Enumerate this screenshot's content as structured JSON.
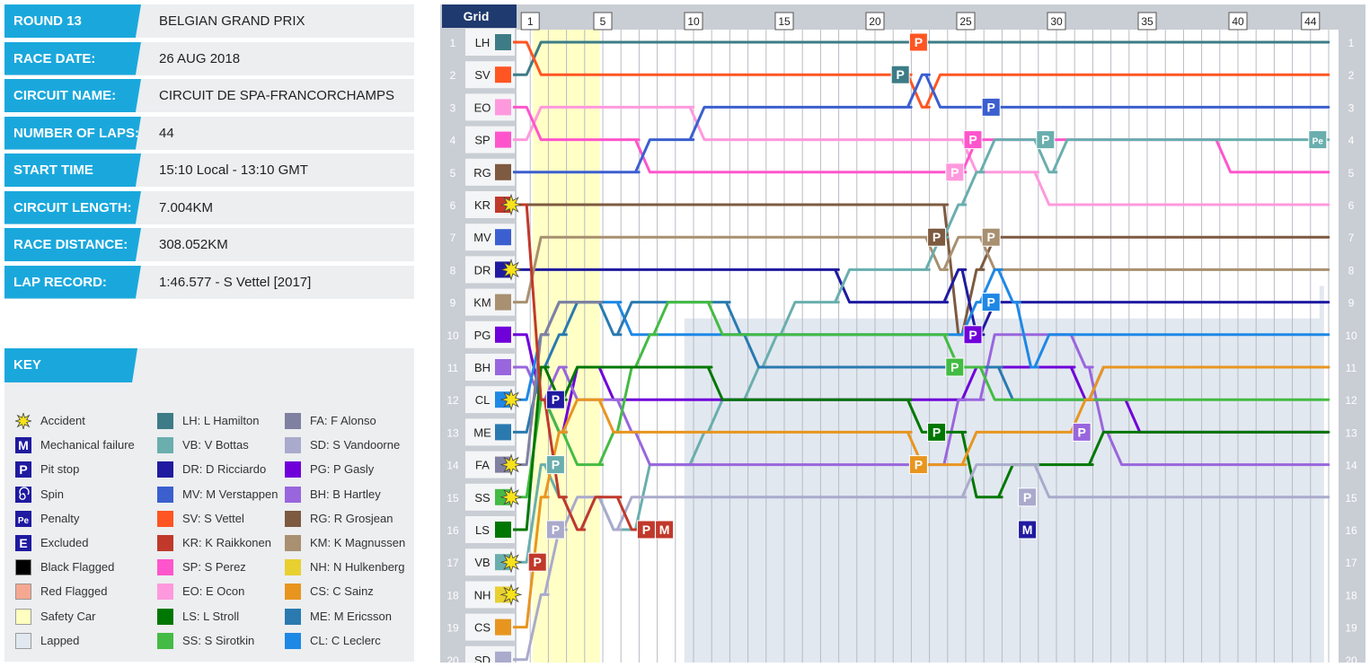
{
  "info": [
    {
      "label": "ROUND 13",
      "value": "BELGIAN GRAND PRIX"
    },
    {
      "label": "RACE DATE:",
      "value": "26 AUG 2018"
    },
    {
      "label": "CIRCUIT NAME:",
      "value": "CIRCUIT DE SPA-FRANCORCHAMPS"
    },
    {
      "label": "NUMBER OF LAPS:",
      "value": "44"
    },
    {
      "label": "START TIME",
      "value": "15:10 Local - 13:10 GMT"
    },
    {
      "label": "CIRCUIT LENGTH:",
      "value": "7.004KM"
    },
    {
      "label": "RACE DISTANCE:",
      "value": "308.052KM"
    },
    {
      "label": "LAP RECORD:",
      "value": "1:46.577 - S Vettel [2017]"
    }
  ],
  "key": {
    "title": "KEY",
    "symbols": [
      {
        "icon": "accident",
        "label": "Accident"
      },
      {
        "icon": "mechanical",
        "label": "Mechanical failure",
        "letter": "M"
      },
      {
        "icon": "pit",
        "label": "Pit stop",
        "letter": "P"
      },
      {
        "icon": "spin",
        "label": "Spin"
      },
      {
        "icon": "penalty",
        "label": "Penalty",
        "letter": "Pe"
      },
      {
        "icon": "excluded",
        "label": "Excluded",
        "letter": "E"
      },
      {
        "icon": "black-flag",
        "label": "Black Flagged",
        "color": "#000000"
      },
      {
        "icon": "red-flag",
        "label": "Red Flagged",
        "color": "#f4a892"
      },
      {
        "icon": "safety-car",
        "label": "Safety Car",
        "color": "#ffffc0"
      },
      {
        "icon": "lapped",
        "label": "Lapped",
        "color": "#e2e8f0"
      }
    ],
    "drivers_col1": [
      "LH: L Hamilton",
      "VB: V Bottas",
      "DR: D Ricciardo",
      "MV: M Verstappen",
      "SV: S Vettel",
      "KR: K Raikkonen",
      "SP: S Perez",
      "EO: E Ocon",
      "LS: L Stroll",
      "SS: S Sirotkin"
    ],
    "drivers_col2": [
      "FA: F Alonso",
      "SD: S Vandoorne",
      "PG: P Gasly",
      "BH: B Hartley",
      "RG: R Grosjean",
      "KM: K Magnussen",
      "NH: N Hulkenberg",
      "CS: C Sainz",
      "ME: M Ericsson",
      "CL: C Leclerc"
    ]
  },
  "chart_data": {
    "type": "line",
    "title": "Grid",
    "x_label_ticks": [
      1,
      5,
      10,
      15,
      20,
      25,
      30,
      35,
      40,
      44
    ],
    "total_laps": 44,
    "positions": 20,
    "grid": [
      "LH",
      "SV",
      "EO",
      "SP",
      "RG",
      "KR",
      "MV",
      "DR",
      "KM",
      "PG",
      "BH",
      "CL",
      "ME",
      "FA",
      "SS",
      "LS",
      "VB",
      "NH",
      "CS",
      "SD"
    ],
    "colors": {
      "LH": "#3d7c86",
      "SV": "#ff5522",
      "EO": "#ff99dd",
      "SP": "#ff55cc",
      "RG": "#7d5a40",
      "KR": "#c0392b",
      "MV": "#3b5fcf",
      "DR": "#1f1aa0",
      "KM": "#a89070",
      "PG": "#6f00d9",
      "BH": "#9966dd",
      "CL": "#1e88e5",
      "ME": "#2a7ab0",
      "FA": "#8080a0",
      "SS": "#44bb44",
      "LS": "#007700",
      "VB": "#6aaeae",
      "NH": "#e8d030",
      "CS": "#e89520",
      "SD": "#aaaacc"
    },
    "safety_car_laps": [
      1,
      4
    ],
    "lapped_positions": [
      [
        9,
        10
      ],
      [
        13,
        10
      ],
      [
        20,
        10
      ],
      [
        29,
        10
      ],
      [
        37,
        10
      ],
      [
        44,
        9
      ]
    ],
    "series": [
      {
        "name": "LH",
        "values": [
          2,
          1,
          1,
          1,
          1,
          1,
          1,
          1,
          1,
          1,
          1,
          1,
          1,
          1,
          1,
          1,
          1,
          1,
          1,
          1,
          1,
          1,
          1,
          1,
          1,
          1,
          1,
          1,
          1,
          1,
          1,
          1,
          1,
          1,
          1,
          1,
          1,
          1,
          1,
          1,
          1,
          1,
          1,
          1,
          1
        ]
      },
      {
        "name": "SV",
        "values": [
          1,
          2,
          2,
          2,
          2,
          2,
          2,
          2,
          2,
          2,
          2,
          2,
          2,
          2,
          2,
          2,
          2,
          2,
          2,
          2,
          2,
          2,
          3,
          2,
          2,
          2,
          2,
          2,
          2,
          2,
          2,
          2,
          2,
          2,
          2,
          2,
          2,
          2,
          2,
          2,
          2,
          2,
          2,
          2,
          2
        ]
      },
      {
        "name": "EO",
        "values": [
          4,
          3,
          3,
          3,
          3,
          3,
          3,
          3,
          3,
          3,
          4,
          4,
          4,
          4,
          4,
          4,
          4,
          4,
          4,
          4,
          4,
          4,
          4,
          4,
          4,
          5,
          5,
          5,
          5,
          6,
          6,
          6,
          6,
          6,
          6,
          6,
          6,
          6,
          6,
          6,
          6,
          6,
          6,
          6,
          6
        ]
      },
      {
        "name": "SP",
        "values": [
          3,
          4,
          4,
          4,
          4,
          4,
          4,
          5,
          5,
          5,
          5,
          5,
          5,
          5,
          5,
          5,
          5,
          5,
          5,
          5,
          5,
          5,
          5,
          5,
          5,
          4,
          4,
          4,
          4,
          4,
          4,
          4,
          4,
          4,
          4,
          4,
          4,
          4,
          4,
          5,
          5,
          5,
          5,
          5,
          5
        ]
      },
      {
        "name": "RG",
        "values": [
          6,
          6,
          6,
          6,
          6,
          6,
          6,
          6,
          6,
          6,
          6,
          6,
          6,
          6,
          6,
          6,
          6,
          6,
          6,
          6,
          6,
          6,
          6,
          6,
          10,
          8,
          7,
          7,
          7,
          7,
          7,
          7,
          7,
          7,
          7,
          7,
          7,
          7,
          7,
          7,
          7,
          7,
          7,
          7,
          7
        ]
      },
      {
        "name": "MV",
        "values": [
          5,
          5,
          5,
          5,
          5,
          5,
          5,
          4,
          4,
          4,
          3,
          3,
          3,
          3,
          3,
          3,
          3,
          3,
          3,
          3,
          3,
          3,
          2,
          3,
          3,
          3,
          3,
          3,
          3,
          3,
          3,
          3,
          3,
          3,
          3,
          3,
          3,
          3,
          3,
          3,
          3,
          3,
          3,
          3,
          3
        ]
      },
      {
        "name": "DR",
        "values": [
          8,
          8,
          8,
          8,
          8,
          8,
          8,
          8,
          8,
          8,
          8,
          8,
          8,
          8,
          8,
          8,
          8,
          8,
          9,
          9,
          9,
          9,
          9,
          9,
          8,
          10,
          9,
          9,
          9,
          9,
          9,
          9,
          9,
          9,
          9,
          9,
          9,
          9,
          9,
          9,
          9,
          9,
          9,
          9,
          9
        ]
      },
      {
        "name": "KM",
        "values": [
          9,
          7,
          7,
          7,
          7,
          7,
          7,
          7,
          7,
          7,
          7,
          7,
          7,
          7,
          7,
          7,
          7,
          7,
          7,
          7,
          7,
          7,
          7,
          8,
          7,
          7,
          8,
          8,
          8,
          8,
          8,
          8,
          8,
          8,
          8,
          8,
          8,
          8,
          8,
          8,
          8,
          8,
          8,
          8,
          8
        ]
      },
      {
        "name": "VB",
        "values": [
          17,
          14,
          15,
          16,
          15,
          16,
          16,
          14,
          14,
          14,
          13,
          12,
          12,
          11,
          10,
          9,
          9,
          9,
          8,
          8,
          8,
          8,
          8,
          7,
          6,
          5,
          4,
          4,
          4,
          5,
          4,
          4,
          4,
          4,
          4,
          4,
          4,
          4,
          4,
          4,
          4,
          4,
          4,
          4,
          4
        ]
      },
      {
        "name": "PG",
        "values": [
          10,
          12,
          13,
          11,
          11,
          12,
          12,
          12,
          12,
          12,
          12,
          12,
          12,
          12,
          12,
          12,
          12,
          12,
          12,
          12,
          12,
          12,
          12,
          12,
          12,
          11,
          11,
          11,
          11,
          11,
          11,
          12,
          12,
          12,
          13,
          13,
          13,
          13,
          13,
          13,
          13,
          13,
          13,
          13,
          13
        ]
      },
      {
        "name": "BH",
        "values": [
          11,
          12,
          11,
          12,
          12,
          12,
          13,
          14,
          14,
          14,
          14,
          14,
          14,
          14,
          14,
          14,
          14,
          14,
          14,
          14,
          14,
          14,
          14,
          14,
          12,
          12,
          10,
          10,
          10,
          10,
          10,
          11,
          13,
          14,
          14,
          14,
          14,
          14,
          14,
          14,
          14,
          14,
          14,
          14,
          14
        ]
      },
      {
        "name": "CL",
        "values": [
          12,
          10,
          9,
          9,
          9,
          9,
          10,
          10,
          10,
          10,
          10,
          10,
          10,
          10,
          10,
          10,
          10,
          10,
          10,
          10,
          10,
          10,
          10,
          10,
          10,
          9,
          8,
          9,
          11,
          10,
          10,
          10,
          10,
          10,
          10,
          10,
          10,
          10,
          10,
          10,
          10,
          10,
          10,
          10,
          10
        ]
      },
      {
        "name": "ME",
        "values": [
          13,
          11,
          10,
          9,
          9,
          10,
          9,
          9,
          9,
          9,
          9,
          9,
          10,
          11,
          11,
          11,
          11,
          11,
          11,
          11,
          11,
          11,
          11,
          11,
          11,
          11,
          11,
          12,
          12,
          12,
          12,
          12,
          11,
          11,
          11,
          11,
          11,
          11,
          11,
          11,
          11,
          11,
          11,
          11,
          11
        ]
      },
      {
        "name": "SS",
        "values": [
          15,
          12,
          13,
          14,
          14,
          13,
          11,
          10,
          9,
          9,
          9,
          10,
          10,
          10,
          10,
          10,
          10,
          10,
          10,
          10,
          10,
          10,
          10,
          10,
          11,
          11,
          12,
          12,
          12,
          12,
          12,
          12,
          12,
          12,
          12,
          12,
          12,
          12,
          12,
          12,
          12,
          12,
          12,
          12,
          12
        ]
      },
      {
        "name": "LS",
        "values": [
          16,
          11,
          12,
          11,
          11,
          11,
          11,
          11,
          11,
          11,
          11,
          12,
          12,
          12,
          12,
          12,
          12,
          12,
          12,
          12,
          12,
          12,
          13,
          13,
          13,
          15,
          15,
          14,
          14,
          14,
          14,
          14,
          13,
          13,
          13,
          13,
          13,
          13,
          13,
          13,
          13,
          13,
          13,
          13,
          13
        ]
      },
      {
        "name": "CS",
        "values": [
          19,
          15,
          13,
          12,
          12,
          13,
          13,
          13,
          13,
          13,
          13,
          13,
          13,
          13,
          13,
          13,
          13,
          13,
          13,
          13,
          13,
          13,
          14,
          14,
          14,
          13,
          13,
          13,
          13,
          13,
          13,
          12,
          11,
          11,
          11,
          11,
          11,
          11,
          11,
          11,
          11,
          11,
          11,
          11,
          11
        ]
      },
      {
        "name": "SD",
        "values": [
          20,
          18,
          16,
          15,
          15,
          16,
          15,
          15,
          15,
          15,
          15,
          15,
          15,
          15,
          15,
          15,
          15,
          15,
          15,
          15,
          15,
          15,
          15,
          15,
          15,
          14,
          14,
          14,
          14,
          15,
          15,
          15,
          15,
          15,
          15,
          15,
          15,
          15,
          15,
          15,
          15,
          15,
          15,
          15,
          15
        ]
      },
      {
        "name": "FA",
        "values": [
          14,
          10,
          9,
          9,
          9
        ]
      },
      {
        "name": "KR",
        "values": [
          6,
          12,
          15,
          16,
          15,
          15,
          16,
          16
        ]
      },
      {
        "name": "LS_tail",
        "values": []
      },
      {
        "name": "NH",
        "values": [
          18
        ]
      }
    ],
    "dr_retire": {
      "name": "DR2",
      "values": []
    },
    "markers": [
      {
        "type": "P",
        "lap": 22,
        "pos": 1,
        "color": "#ff5522"
      },
      {
        "type": "P",
        "lap": 21,
        "pos": 2,
        "color": "#3d7c86"
      },
      {
        "type": "P",
        "lap": 26,
        "pos": 3,
        "color": "#3b5fcf"
      },
      {
        "type": "P",
        "lap": 25,
        "pos": 4,
        "color": "#ff55cc"
      },
      {
        "type": "P",
        "lap": 29,
        "pos": 4,
        "color": "#6aaeae"
      },
      {
        "type": "Pe",
        "lap": 44,
        "pos": 4,
        "color": "#6aaeae"
      },
      {
        "type": "P",
        "lap": 24,
        "pos": 5,
        "color": "#ff99dd"
      },
      {
        "type": "P",
        "lap": 23,
        "pos": 7,
        "color": "#7d5a40"
      },
      {
        "type": "P",
        "lap": 26,
        "pos": 7,
        "color": "#a89070"
      },
      {
        "type": "P",
        "lap": 26,
        "pos": 9,
        "color": "#1e88e5"
      },
      {
        "type": "P",
        "lap": 25,
        "pos": 10,
        "color": "#6f00d9"
      },
      {
        "type": "P",
        "lap": 24,
        "pos": 11,
        "color": "#44bb44"
      },
      {
        "type": "P",
        "lap": 2,
        "pos": 12,
        "color": "#1f1aa0"
      },
      {
        "type": "P",
        "lap": 23,
        "pos": 13,
        "color": "#007700"
      },
      {
        "type": "P",
        "lap": 31,
        "pos": 13,
        "color": "#9966dd"
      },
      {
        "type": "P",
        "lap": 2,
        "pos": 14,
        "color": "#6aaeae"
      },
      {
        "type": "P",
        "lap": 22,
        "pos": 14,
        "color": "#e89520"
      },
      {
        "type": "P",
        "lap": 28,
        "pos": 15,
        "color": "#aaaacc"
      },
      {
        "type": "P",
        "lap": 2,
        "pos": 16,
        "color": "#aaaacc"
      },
      {
        "type": "P",
        "lap": 7,
        "pos": 16,
        "color": "#c0392b"
      },
      {
        "type": "M",
        "lap": 8,
        "pos": 16,
        "color": "#c0392b"
      },
      {
        "type": "M",
        "lap": 28,
        "pos": 16,
        "color": "#1f1aa0"
      },
      {
        "type": "P",
        "lap": 1,
        "pos": 17,
        "color": "#c0392b"
      }
    ],
    "accidents_at_grid": [
      "KR",
      "DR",
      "CL",
      "FA",
      "SS",
      "VB",
      "NH"
    ]
  }
}
